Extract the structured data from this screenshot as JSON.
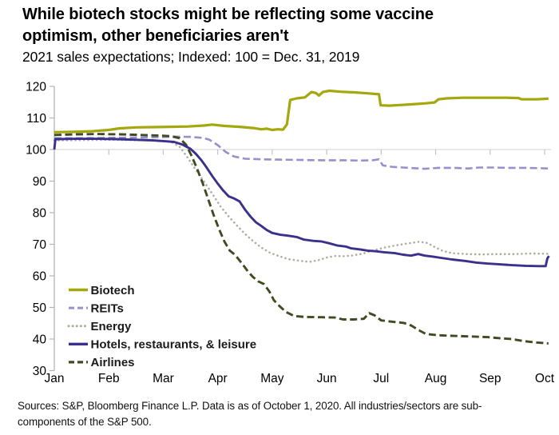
{
  "header": {
    "title": "While biotech stocks might be reflecting some vaccine optimism, other beneficiaries aren't",
    "subtitle": "2021 sales expectations; Indexed: 100 = Dec. 31, 2019"
  },
  "source_note": {
    "line1": "Sources: S&P, Bloomberg Finance L.P. Data is as of October 1, 2020. All industries/sectors are sub-",
    "line2": "components of the S&P 500."
  },
  "chart_data": {
    "type": "line",
    "title": "While biotech stocks might be reflecting some vaccine optimism, other beneficiaries aren't",
    "subtitle": "2021 sales expectations; Indexed: 100 = Dec. 31, 2019",
    "x_labels": [
      "Jan",
      "Feb",
      "Mar",
      "Apr",
      "May",
      "Jun",
      "Jul",
      "Aug",
      "Sep",
      "Oct"
    ],
    "y_ticks": [
      30,
      40,
      50,
      60,
      70,
      80,
      90,
      100,
      110,
      120
    ],
    "ylim": [
      30,
      120
    ],
    "xlim_months": [
      1,
      10.1
    ],
    "baseline_gridline": 100,
    "grid": "single light horizontal gridline at index value 100 with month tick marks hanging below it",
    "legend_position": "inside plot, bottom-left",
    "axis_color": "#b3b3b3",
    "gridline_color": "#d9d9d9",
    "tick_color": "#c2c2c2",
    "label_color": "#000000",
    "draw_order": [
      2,
      1,
      4,
      0,
      3
    ],
    "series": [
      {
        "name": "Biotech",
        "color": "#a5a70e",
        "style": "solid",
        "width": 3.2,
        "points": [
          [
            1,
            105.5
          ],
          [
            1.35,
            105.6
          ],
          [
            1.7,
            105.8
          ],
          [
            2,
            106.2
          ],
          [
            2.2,
            106.7
          ],
          [
            2.5,
            107
          ],
          [
            2.8,
            107.1
          ],
          [
            3.1,
            107.2
          ],
          [
            3.45,
            107.3
          ],
          [
            3.75,
            107.6
          ],
          [
            3.9,
            107.9
          ],
          [
            4.1,
            107.5
          ],
          [
            4.4,
            107.2
          ],
          [
            4.65,
            106.8
          ],
          [
            4.8,
            106.4
          ],
          [
            4.9,
            106.6
          ],
          [
            5,
            106.2
          ],
          [
            5.1,
            106.4
          ],
          [
            5.2,
            106.3
          ],
          [
            5.27,
            108
          ],
          [
            5.33,
            115.7
          ],
          [
            5.45,
            116.2
          ],
          [
            5.6,
            116.5
          ],
          [
            5.72,
            118.2
          ],
          [
            5.8,
            117.9
          ],
          [
            5.86,
            117.1
          ],
          [
            5.93,
            118.2
          ],
          [
            6.05,
            118.6
          ],
          [
            6.25,
            118.3
          ],
          [
            6.5,
            118.1
          ],
          [
            6.75,
            117.8
          ],
          [
            6.96,
            117.5
          ],
          [
            6.99,
            114
          ],
          [
            7.15,
            113.9
          ],
          [
            7.35,
            114.1
          ],
          [
            7.55,
            114.3
          ],
          [
            7.8,
            114.6
          ],
          [
            7.98,
            114.9
          ],
          [
            8.05,
            115.9
          ],
          [
            8.2,
            116.2
          ],
          [
            8.5,
            116.4
          ],
          [
            8.9,
            116.4
          ],
          [
            9.3,
            116.4
          ],
          [
            9.52,
            116.3
          ],
          [
            9.58,
            115.9
          ],
          [
            9.85,
            115.9
          ],
          [
            10.07,
            116.1
          ]
        ]
      },
      {
        "name": "REITs",
        "color": "#9790ca",
        "style": "dashed",
        "width": 2.6,
        "points": [
          [
            1,
            103.6
          ],
          [
            1.5,
            103.6
          ],
          [
            2,
            103.7
          ],
          [
            2.5,
            103.8
          ],
          [
            2.9,
            103.9
          ],
          [
            3.2,
            104.1
          ],
          [
            3.5,
            104
          ],
          [
            3.72,
            103.7
          ],
          [
            3.85,
            103.1
          ],
          [
            4,
            101.4
          ],
          [
            4.15,
            99.2
          ],
          [
            4.3,
            97.8
          ],
          [
            4.5,
            97.1
          ],
          [
            4.8,
            96.9
          ],
          [
            5.1,
            96.8
          ],
          [
            5.5,
            96.7
          ],
          [
            5.9,
            96.6
          ],
          [
            6.3,
            96.6
          ],
          [
            6.6,
            96.5
          ],
          [
            6.85,
            96.6
          ],
          [
            6.96,
            96.9
          ],
          [
            7.03,
            95
          ],
          [
            7.2,
            94.5
          ],
          [
            7.4,
            94.3
          ],
          [
            7.6,
            94.1
          ],
          [
            7.8,
            93.9
          ],
          [
            8.05,
            94.2
          ],
          [
            8.35,
            94.2
          ],
          [
            8.6,
            94
          ],
          [
            8.8,
            94.3
          ],
          [
            9.05,
            94.3
          ],
          [
            9.35,
            94.2
          ],
          [
            9.65,
            94.2
          ],
          [
            9.9,
            94.1
          ],
          [
            10.07,
            94
          ]
        ]
      },
      {
        "name": "Energy",
        "color": "#b1aca0",
        "style": "dotted",
        "width": 2.6,
        "points": [
          [
            1,
            102.9
          ],
          [
            1.5,
            103
          ],
          [
            2,
            103.1
          ],
          [
            2.5,
            103
          ],
          [
            2.9,
            102.8
          ],
          [
            3.15,
            102.4
          ],
          [
            3.3,
            100.9
          ],
          [
            3.45,
            97.4
          ],
          [
            3.6,
            93.5
          ],
          [
            3.75,
            89.8
          ],
          [
            3.9,
            86
          ],
          [
            4.05,
            82
          ],
          [
            4.2,
            78.8
          ],
          [
            4.35,
            76
          ],
          [
            4.5,
            73.3
          ],
          [
            4.65,
            71
          ],
          [
            4.8,
            69
          ],
          [
            4.95,
            67.4
          ],
          [
            5.1,
            66.4
          ],
          [
            5.3,
            65.3
          ],
          [
            5.5,
            64.8
          ],
          [
            5.68,
            64.4
          ],
          [
            5.85,
            65
          ],
          [
            6,
            65.8
          ],
          [
            6.15,
            66.3
          ],
          [
            6.3,
            66.2
          ],
          [
            6.45,
            66.4
          ],
          [
            6.65,
            67
          ],
          [
            6.85,
            68
          ],
          [
            7.05,
            68.9
          ],
          [
            7.25,
            69.6
          ],
          [
            7.5,
            70.3
          ],
          [
            7.7,
            70.8
          ],
          [
            7.85,
            70.4
          ],
          [
            8,
            69
          ],
          [
            8.12,
            68
          ],
          [
            8.3,
            67.2
          ],
          [
            8.55,
            66.9
          ],
          [
            8.85,
            66.8
          ],
          [
            9.15,
            66.9
          ],
          [
            9.45,
            66.9
          ],
          [
            9.75,
            67.1
          ],
          [
            10.07,
            67
          ]
        ]
      },
      {
        "name": "Hotels, restaurants, & leisure",
        "color": "#39318b",
        "style": "solid",
        "width": 2.9,
        "points": [
          [
            1,
            100
          ],
          [
            1.02,
            103.3
          ],
          [
            1.4,
            103.4
          ],
          [
            1.8,
            103.4
          ],
          [
            2.15,
            103.3
          ],
          [
            2.5,
            103.1
          ],
          [
            2.8,
            102.9
          ],
          [
            3.05,
            102.6
          ],
          [
            3.2,
            102.4
          ],
          [
            3.35,
            101.6
          ],
          [
            3.5,
            100.2
          ],
          [
            3.6,
            98.6
          ],
          [
            3.7,
            96.6
          ],
          [
            3.8,
            94.2
          ],
          [
            3.9,
            91.6
          ],
          [
            4,
            89.2
          ],
          [
            4.1,
            87
          ],
          [
            4.2,
            85.2
          ],
          [
            4.3,
            84.5
          ],
          [
            4.4,
            83.6
          ],
          [
            4.5,
            81
          ],
          [
            4.6,
            78.8
          ],
          [
            4.7,
            77
          ],
          [
            4.8,
            75.8
          ],
          [
            4.9,
            74.5
          ],
          [
            5,
            73.6
          ],
          [
            5.15,
            73
          ],
          [
            5.3,
            72.7
          ],
          [
            5.45,
            72.3
          ],
          [
            5.58,
            71.5
          ],
          [
            5.75,
            71.1
          ],
          [
            5.9,
            70.9
          ],
          [
            6.05,
            70.3
          ],
          [
            6.2,
            69.6
          ],
          [
            6.35,
            69.3
          ],
          [
            6.45,
            68.7
          ],
          [
            6.6,
            68.4
          ],
          [
            6.75,
            68
          ],
          [
            6.9,
            67.8
          ],
          [
            7.05,
            67.5
          ],
          [
            7.25,
            67.2
          ],
          [
            7.4,
            66.7
          ],
          [
            7.55,
            66.4
          ],
          [
            7.68,
            66.9
          ],
          [
            7.8,
            66.4
          ],
          [
            7.95,
            66.1
          ],
          [
            8.1,
            65.7
          ],
          [
            8.3,
            65.2
          ],
          [
            8.55,
            64.7
          ],
          [
            8.75,
            64.2
          ],
          [
            8.95,
            63.9
          ],
          [
            9.15,
            63.7
          ],
          [
            9.4,
            63.4
          ],
          [
            9.65,
            63.2
          ],
          [
            9.9,
            63.1
          ],
          [
            10.02,
            63.1
          ],
          [
            10.05,
            65.5
          ],
          [
            10.08,
            66.3
          ]
        ]
      },
      {
        "name": "Airlines",
        "color": "#3f4c21",
        "style": "dashed",
        "width": 2.9,
        "points": [
          [
            1,
            104.6
          ],
          [
            1.4,
            104.8
          ],
          [
            1.8,
            104.9
          ],
          [
            2.2,
            104.8
          ],
          [
            2.6,
            104.6
          ],
          [
            2.95,
            104.4
          ],
          [
            3.15,
            104.2
          ],
          [
            3.3,
            103.6
          ],
          [
            3.42,
            101.5
          ],
          [
            3.52,
            98
          ],
          [
            3.62,
            94
          ],
          [
            3.72,
            89.5
          ],
          [
            3.82,
            84.5
          ],
          [
            3.92,
            79.5
          ],
          [
            4.02,
            75
          ],
          [
            4.12,
            71
          ],
          [
            4.22,
            68
          ],
          [
            4.32,
            66.6
          ],
          [
            4.45,
            63.8
          ],
          [
            4.55,
            61.5
          ],
          [
            4.65,
            59.6
          ],
          [
            4.75,
            58.2
          ],
          [
            4.85,
            57.4
          ],
          [
            4.95,
            55
          ],
          [
            5.03,
            52.3
          ],
          [
            5.13,
            50.5
          ],
          [
            5.25,
            48.6
          ],
          [
            5.4,
            47.3
          ],
          [
            5.6,
            47
          ],
          [
            5.9,
            46.9
          ],
          [
            6.15,
            46.8
          ],
          [
            6.3,
            46.2
          ],
          [
            6.5,
            46.2
          ],
          [
            6.68,
            46.4
          ],
          [
            6.78,
            48.2
          ],
          [
            6.88,
            47.5
          ],
          [
            7,
            45.9
          ],
          [
            7.2,
            45.5
          ],
          [
            7.42,
            45.1
          ],
          [
            7.55,
            44.3
          ],
          [
            7.68,
            42.9
          ],
          [
            7.82,
            41.6
          ],
          [
            8.05,
            41.2
          ],
          [
            8.35,
            41
          ],
          [
            8.65,
            40.8
          ],
          [
            8.95,
            40.6
          ],
          [
            9.15,
            40.3
          ],
          [
            9.4,
            40
          ],
          [
            9.6,
            39.4
          ],
          [
            9.85,
            38.9
          ],
          [
            10.07,
            38.6
          ]
        ]
      }
    ]
  }
}
